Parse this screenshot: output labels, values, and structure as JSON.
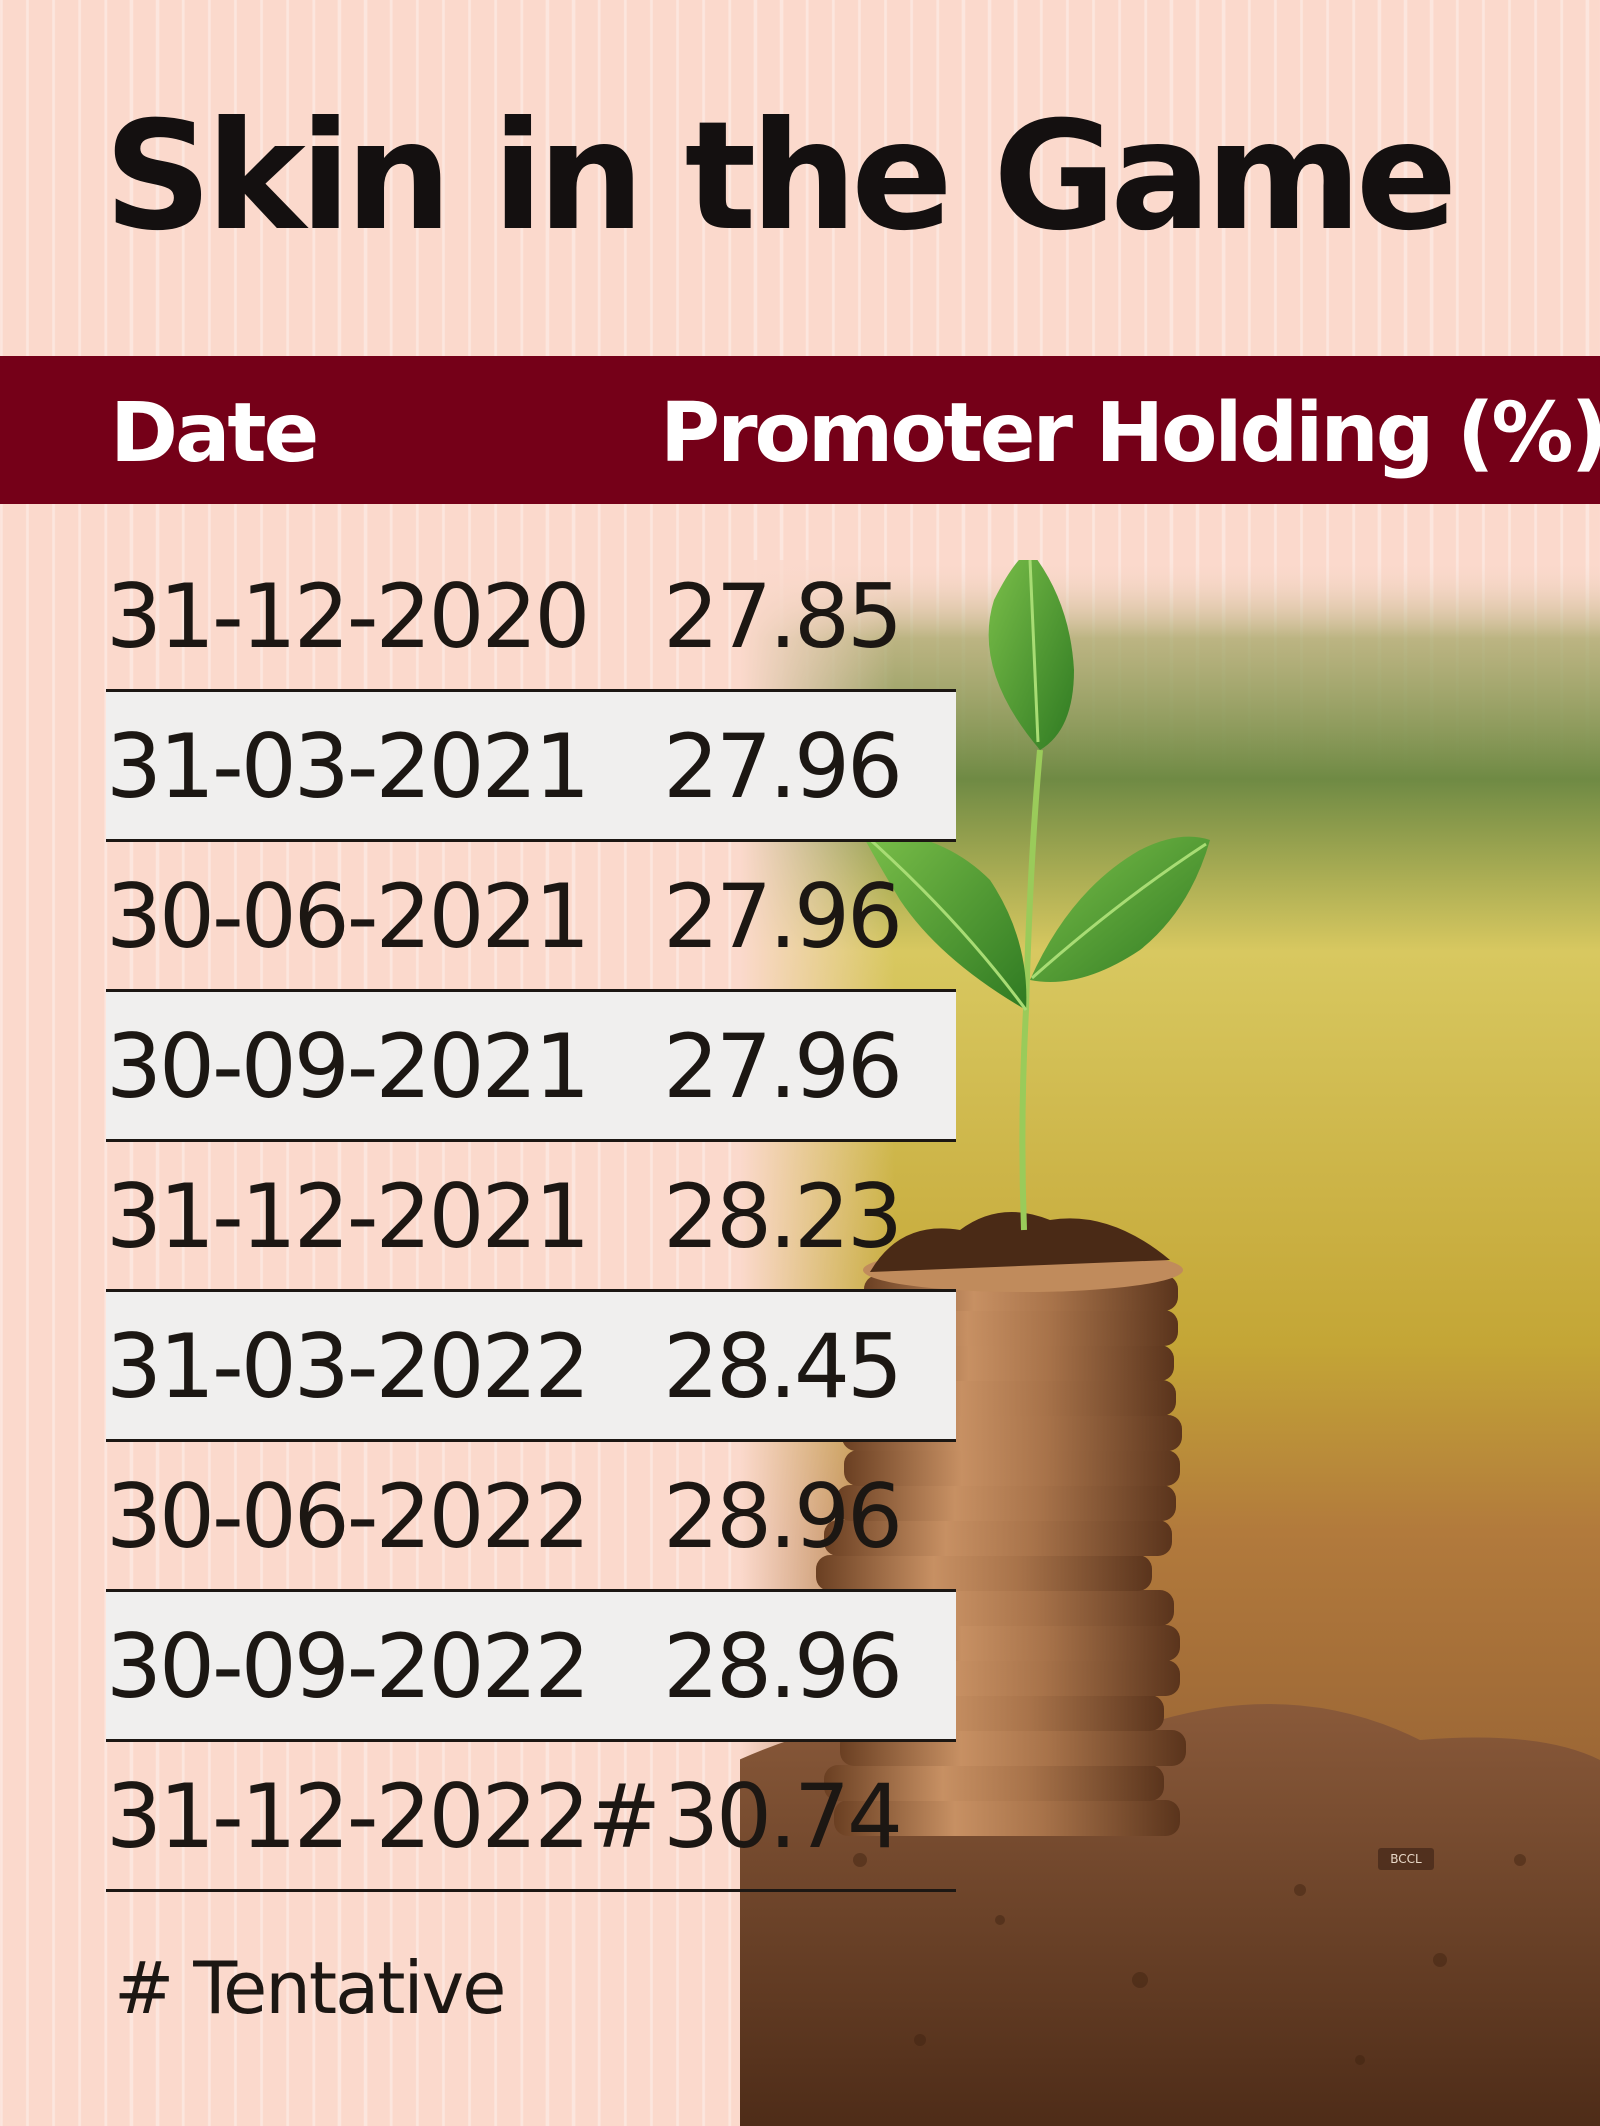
{
  "title": "Skin in the Game",
  "footnote": "# Tentative",
  "credit": "BCCL",
  "colors": {
    "background": "#fbd9cc",
    "header": "#750018",
    "shaded_row": "#f0efee",
    "text": "#1c1713",
    "leaf": "#4a9a2c",
    "coin": "#b07a4c",
    "soil": "#6b4128"
  },
  "icons": [
    "sapling-icon",
    "coin-stack-icon",
    "soil-icon"
  ],
  "chart_data": {
    "type": "table",
    "title": "Skin in the Game",
    "columns": [
      "Date",
      "Promoter Holding (%)"
    ],
    "rows": [
      {
        "date": "31-12-2020",
        "value": "27.85"
      },
      {
        "date": "31-03-2021",
        "value": "27.96"
      },
      {
        "date": "30-06-2021",
        "value": "27.96"
      },
      {
        "date": "30-09-2021",
        "value": "27.96"
      },
      {
        "date": "31-12-2021",
        "value": "28.23"
      },
      {
        "date": "31-03-2022",
        "value": "28.45"
      },
      {
        "date": "30-06-2022",
        "value": "28.96"
      },
      {
        "date": "30-09-2022",
        "value": "28.96"
      },
      {
        "date": "31-12-2022#",
        "value": "30.74"
      }
    ],
    "footnote": "# Tentative"
  }
}
